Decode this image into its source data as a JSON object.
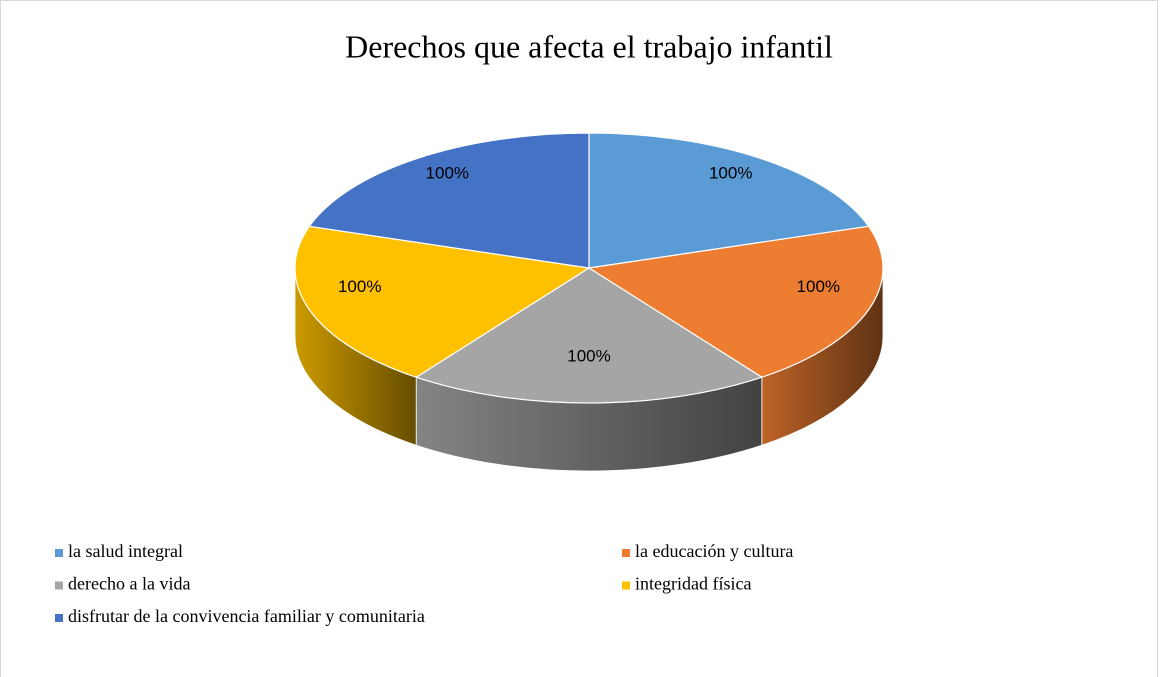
{
  "chart_data": {
    "type": "pie",
    "title": "Derechos que afecta el trabajo infantil",
    "categories": [
      "la salud integral",
      "la educación y cultura",
      "derecho a la vida",
      "integridad física",
      "disfrutar de la convivencia familiar y comunitaria"
    ],
    "values": [
      100,
      100,
      100,
      100,
      100
    ],
    "value_labels": [
      "100%",
      "100%",
      "100%",
      "100%",
      "100%"
    ],
    "colors": [
      "#5b9bd5",
      "#ed7d31",
      "#a5a5a5",
      "#ffc000",
      "#4472c4"
    ],
    "legend": "bottom"
  }
}
